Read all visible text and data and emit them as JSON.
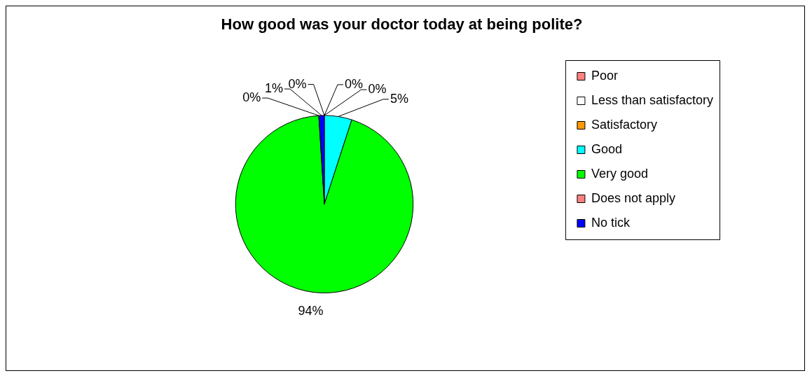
{
  "chart_data": {
    "type": "pie",
    "title": "How good was your doctor today at being polite?",
    "categories": [
      "Poor",
      "Less than satisfactory",
      "Satisfactory",
      "Good",
      "Very good",
      "Does not apply",
      "No tick"
    ],
    "values": [
      0,
      0,
      0,
      5,
      94,
      0,
      1
    ],
    "colors": [
      "#ff8080",
      "#ffffff",
      "#ff9900",
      "#00ffff",
      "#00ff00",
      "#ff8080",
      "#0000ff"
    ],
    "value_labels": [
      "0%",
      "0%",
      "0%",
      "5%",
      "94%",
      "0%",
      "1%"
    ],
    "legend": "right"
  }
}
